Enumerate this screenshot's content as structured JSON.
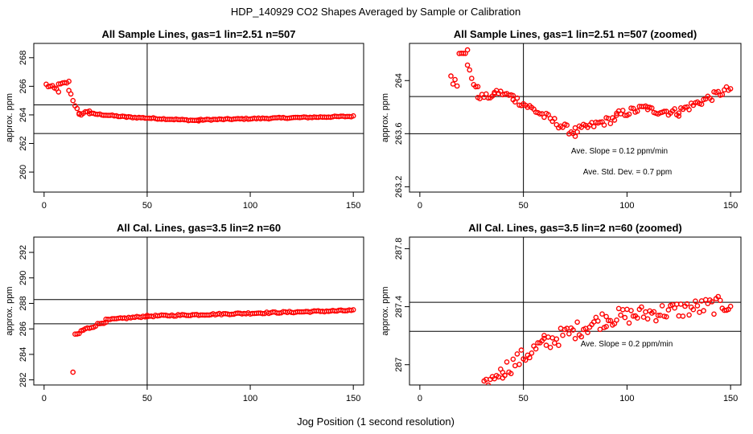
{
  "figure": {
    "title": "HDP_140929  CO2 Shapes Averaged by Sample or Calibration",
    "xlabel": "Jog Position (1 second resolution)",
    "marker_color": "#ff0000"
  },
  "chart_data": [
    {
      "id": "p1",
      "type": "scatter",
      "title": "All Sample Lines, gas=1 lin=2.51 n=507",
      "xlabel": "",
      "ylabel": "approx. ppm",
      "xlim": [
        -5,
        155
      ],
      "ylim": [
        258.6,
        269.0
      ],
      "xticks": [
        0,
        50,
        100,
        150
      ],
      "yticks": [
        260,
        262,
        264,
        266,
        268
      ],
      "vline": 50,
      "hlines": [
        264.7,
        262.7
      ],
      "annotations": [],
      "segments": [
        {
          "x0": 1,
          "x1": 7,
          "y0": 266.1,
          "y1": 265.7,
          "noise": 0.15
        },
        {
          "x0": 7,
          "x1": 12,
          "y0": 266.1,
          "y1": 266.3,
          "noise": 0.08
        },
        {
          "x0": 12,
          "x1": 17,
          "y0": 265.8,
          "y1": 264.0,
          "noise": 0.15
        },
        {
          "x0": 17,
          "x1": 22,
          "y0": 264.0,
          "y1": 264.3,
          "noise": 0.08
        },
        {
          "x0": 22,
          "x1": 40,
          "y0": 264.1,
          "y1": 263.85,
          "noise": 0.04
        },
        {
          "x0": 40,
          "x1": 75,
          "y0": 263.85,
          "y1": 263.6,
          "noise": 0.04
        },
        {
          "x0": 75,
          "x1": 150,
          "y0": 263.65,
          "y1": 263.9,
          "noise": 0.04
        }
      ]
    },
    {
      "id": "p2",
      "type": "scatter",
      "title": "All Sample Lines, gas=1 lin=2.51 n=507 (zoomed)",
      "xlabel": "",
      "ylabel": "approx. ppm",
      "xlim": [
        -5,
        155
      ],
      "ylim": [
        263.16,
        264.28
      ],
      "xticks": [
        0,
        50,
        100,
        150
      ],
      "yticks": [
        263.2,
        263.6,
        264.0
      ],
      "vline": 50,
      "hlines": [
        263.88,
        263.6
      ],
      "annotations": [
        "Ave. Slope =  0.12  ppm/min",
        "Ave. Std. Dev. =  0.7  ppm"
      ],
      "segments": [
        {
          "x0": 15,
          "x1": 18,
          "y0": 264.05,
          "y1": 263.97,
          "noise": 0.05
        },
        {
          "x0": 19,
          "x1": 23,
          "y0": 264.22,
          "y1": 264.22,
          "noise": 0.02
        },
        {
          "x0": 23,
          "x1": 28,
          "y0": 264.1,
          "y1": 263.92,
          "noise": 0.04
        },
        {
          "x0": 28,
          "x1": 36,
          "y0": 263.88,
          "y1": 263.88,
          "noise": 0.02
        },
        {
          "x0": 36,
          "x1": 45,
          "y0": 263.92,
          "y1": 263.88,
          "noise": 0.02
        },
        {
          "x0": 45,
          "x1": 75,
          "y0": 263.87,
          "y1": 263.6,
          "noise": 0.03
        },
        {
          "x0": 75,
          "x1": 95,
          "y0": 263.62,
          "y1": 263.72,
          "noise": 0.03
        },
        {
          "x0": 95,
          "x1": 110,
          "y0": 263.74,
          "y1": 263.8,
          "noise": 0.03
        },
        {
          "x0": 110,
          "x1": 125,
          "y0": 263.78,
          "y1": 263.76,
          "noise": 0.03
        },
        {
          "x0": 125,
          "x1": 150,
          "y0": 263.77,
          "y1": 263.94,
          "noise": 0.03
        }
      ]
    },
    {
      "id": "p3",
      "type": "scatter",
      "title": "All Cal. Lines, gas=3.5 lin=2 n=60",
      "xlabel": "",
      "ylabel": "approx. ppm",
      "xlim": [
        -5,
        155
      ],
      "ylim": [
        281.6,
        293.2
      ],
      "xticks": [
        0,
        50,
        100,
        150
      ],
      "yticks": [
        282,
        284,
        286,
        288,
        290,
        292
      ],
      "vline": 50,
      "hlines": [
        288.3,
        286.4
      ],
      "annotations": [],
      "singles": [
        {
          "x": 14,
          "y": 282.6
        }
      ],
      "segments": [
        {
          "x0": 15,
          "x1": 19,
          "y0": 285.4,
          "y1": 285.9,
          "noise": 0.2
        },
        {
          "x0": 19,
          "x1": 30,
          "y0": 285.9,
          "y1": 286.6,
          "noise": 0.1
        },
        {
          "x0": 30,
          "x1": 50,
          "y0": 286.7,
          "y1": 287.0,
          "noise": 0.06
        },
        {
          "x0": 50,
          "x1": 150,
          "y0": 287.0,
          "y1": 287.45,
          "noise": 0.06
        }
      ]
    },
    {
      "id": "p4",
      "type": "scatter",
      "title": "All Cal. Lines, gas=3.5 lin=2 n=60 (zoomed)",
      "xlabel": "",
      "ylabel": "approx. ppm",
      "xlim": [
        -5,
        155
      ],
      "ylim": [
        286.86,
        287.88
      ],
      "xticks": [
        0,
        50,
        100,
        150
      ],
      "yticks": [
        287.0,
        287.4,
        287.8
      ],
      "vline": 50,
      "hlines": [
        287.43,
        287.23
      ],
      "annotations": [
        "Ave. Slope =  0.2  ppm/min"
      ],
      "segments": [
        {
          "x0": 31,
          "x1": 40,
          "y0": 286.86,
          "y1": 286.96,
          "noise": 0.03
        },
        {
          "x0": 40,
          "x1": 60,
          "y0": 286.96,
          "y1": 287.15,
          "noise": 0.06
        },
        {
          "x0": 60,
          "x1": 90,
          "y0": 287.15,
          "y1": 287.32,
          "noise": 0.06
        },
        {
          "x0": 90,
          "x1": 150,
          "y0": 287.32,
          "y1": 287.42,
          "noise": 0.06
        }
      ]
    }
  ]
}
